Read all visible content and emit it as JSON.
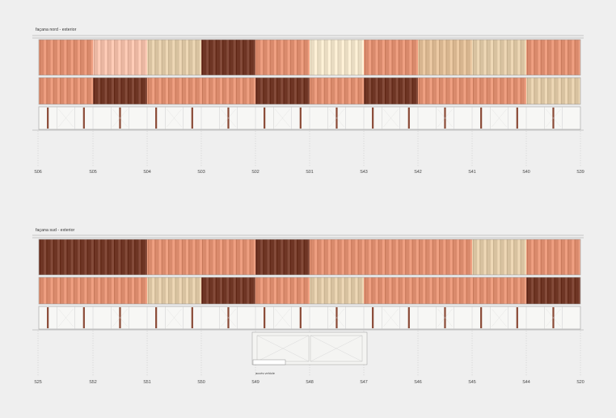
{
  "palette": {
    "background": "#efefef",
    "outline": "#9a9a9a",
    "frame_bg": "#f7f7f5",
    "terracotta": "#d98a6c",
    "terracotta_light": "#e8a98f",
    "salmon": "#eab7a2",
    "brown": "#6e3524",
    "brown_light": "#8a4a36",
    "beige": "#d8c2a0",
    "beige_light": "#e9dcc2",
    "tan": "#d7b58f"
  },
  "elevations": [
    {
      "id": "north",
      "title": "façana nord - exterior",
      "axis_labels": [
        "S06",
        "S05",
        "S04",
        "S03",
        "S02",
        "S01",
        "S43",
        "S42",
        "S41",
        "S40",
        "S39"
      ],
      "upper_bands": [
        "terracotta",
        "salmon",
        "beige",
        "brown",
        "terracotta",
        "beige_light",
        "terracotta",
        "tan",
        "beige",
        "terracotta"
      ],
      "middle_bands": [
        "terracotta",
        "brown",
        "terracotta",
        "terracotta",
        "brown",
        "terracotta",
        "brown",
        "terracotta",
        "terracotta",
        "beige"
      ],
      "note": ""
    },
    {
      "id": "south",
      "title": "façana sud - exterior",
      "axis_labels": [
        "S25",
        "S52",
        "S51",
        "S50",
        "S49",
        "S48",
        "S47",
        "S46",
        "S45",
        "S44",
        "S20"
      ],
      "upper_bands": [
        "brown",
        "brown",
        "terracotta",
        "terracotta",
        "brown",
        "terracotta",
        "terracotta",
        "terracotta",
        "beige",
        "terracotta"
      ],
      "middle_bands": [
        "terracotta",
        "terracotta",
        "beige",
        "brown",
        "terracotta",
        "beige",
        "terracotta",
        "terracotta",
        "terracotta",
        "brown"
      ],
      "note": "accés vehicle"
    }
  ]
}
